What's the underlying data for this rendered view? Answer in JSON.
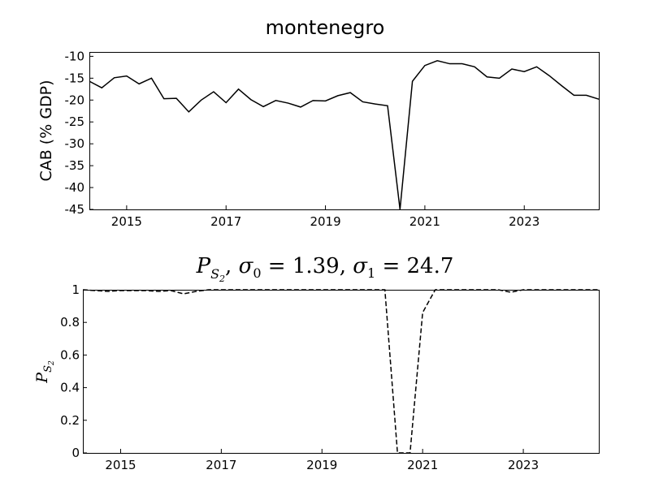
{
  "chart_data": [
    {
      "type": "line",
      "title": "montenegro",
      "ylabel": "CAB (% GDP)",
      "xlabel": "",
      "xlim": [
        2014.25,
        2024.5
      ],
      "ylim": [
        -45,
        -9
      ],
      "x_ticks": [
        2015,
        2017,
        2019,
        2021,
        2023
      ],
      "x_tick_labels": [
        "2015",
        "2017",
        "2019",
        "2021",
        "2023"
      ],
      "y_ticks": [
        -10,
        -15,
        -20,
        -25,
        -30,
        -35,
        -40,
        -45
      ],
      "y_tick_labels": [
        "-10",
        "-15",
        "-20",
        "-25",
        "-30",
        "-35",
        "-40",
        "-45"
      ],
      "grid": false,
      "series": [
        {
          "style": "solid",
          "color": "#000000",
          "x": [
            2014.25,
            2014.5,
            2014.75,
            2015.0,
            2015.25,
            2015.5,
            2015.75,
            2016.0,
            2016.25,
            2016.5,
            2016.75,
            2017.0,
            2017.25,
            2017.5,
            2017.75,
            2018.0,
            2018.25,
            2018.5,
            2018.75,
            2019.0,
            2019.25,
            2019.5,
            2019.75,
            2020.0,
            2020.25,
            2020.5,
            2020.75,
            2021.0,
            2021.25,
            2021.5,
            2021.75,
            2022.0,
            2022.25,
            2022.5,
            2022.75,
            2023.0,
            2023.25,
            2023.5,
            2023.75,
            2024.0,
            2024.25,
            2024.5
          ],
          "y": [
            -15.7,
            -17.2,
            -14.9,
            -14.5,
            -16.3,
            -15.0,
            -19.7,
            -19.6,
            -22.7,
            -20.0,
            -18.1,
            -20.6,
            -17.5,
            -19.9,
            -21.5,
            -20.1,
            -20.7,
            -21.6,
            -20.1,
            -20.2,
            -19.0,
            -18.3,
            -20.4,
            -20.9,
            -21.3,
            -45.0,
            -15.7,
            -12.1,
            -11.0,
            -11.7,
            -11.7,
            -12.4,
            -14.7,
            -15.0,
            -12.9,
            -13.5,
            -12.4,
            -14.4,
            -16.7,
            -18.9,
            -18.9,
            -19.8
          ]
        }
      ]
    },
    {
      "type": "line",
      "title": "P_{S_2}, σ_0 = 1.39, σ_1 = 24.7",
      "title_parts": {
        "P": "P",
        "sub_S": "S",
        "sub_2": "2",
        "sigma0": "σ",
        "sigma0_sub": "0",
        "eq0": " = 1.39, ",
        "sigma1": "σ",
        "sigma1_sub": "1",
        "eq1": " = 24.7"
      },
      "ylabel": "P_{S_2}",
      "ylabel_parts": {
        "P": "P",
        "sub_S": "S",
        "sub_2": "2"
      },
      "xlabel": "",
      "xlim": [
        2014.25,
        2024.5
      ],
      "ylim": [
        0,
        1
      ],
      "x_ticks": [
        2015,
        2017,
        2019,
        2021,
        2023
      ],
      "x_tick_labels": [
        "2015",
        "2017",
        "2019",
        "2021",
        "2023"
      ],
      "y_ticks": [
        1,
        0.8,
        0.6,
        0.4,
        0.2,
        0
      ],
      "y_tick_labels": [
        "1",
        "0.8",
        "0.6",
        "0.4",
        "0.2",
        "0"
      ],
      "grid": false,
      "series": [
        {
          "style": "dashed",
          "color": "#000000",
          "x": [
            2014.25,
            2014.5,
            2014.75,
            2015.0,
            2015.25,
            2015.5,
            2015.75,
            2016.0,
            2016.25,
            2016.5,
            2016.75,
            2017.0,
            2017.25,
            2017.5,
            2017.75,
            2018.0,
            2018.25,
            2018.5,
            2018.75,
            2019.0,
            2019.25,
            2019.5,
            2019.75,
            2020.0,
            2020.25,
            2020.5,
            2020.75,
            2021.0,
            2021.25,
            2021.5,
            2021.75,
            2022.0,
            2022.25,
            2022.5,
            2022.75,
            2023.0,
            2023.25,
            2023.5,
            2023.75,
            2024.0,
            2024.25,
            2024.5
          ],
          "y": [
            1.0,
            0.995,
            0.99,
            0.995,
            0.995,
            0.995,
            0.99,
            0.995,
            0.975,
            0.99,
            1.0,
            1.0,
            1.0,
            1.0,
            1.0,
            1.0,
            1.0,
            1.0,
            1.0,
            1.0,
            1.0,
            1.0,
            1.0,
            1.0,
            1.0,
            0.0,
            0.0,
            0.86,
            1.0,
            1.0,
            1.0,
            1.0,
            1.0,
            1.0,
            0.985,
            1.0,
            1.0,
            1.0,
            1.0,
            1.0,
            1.0,
            1.0
          ]
        }
      ]
    }
  ]
}
